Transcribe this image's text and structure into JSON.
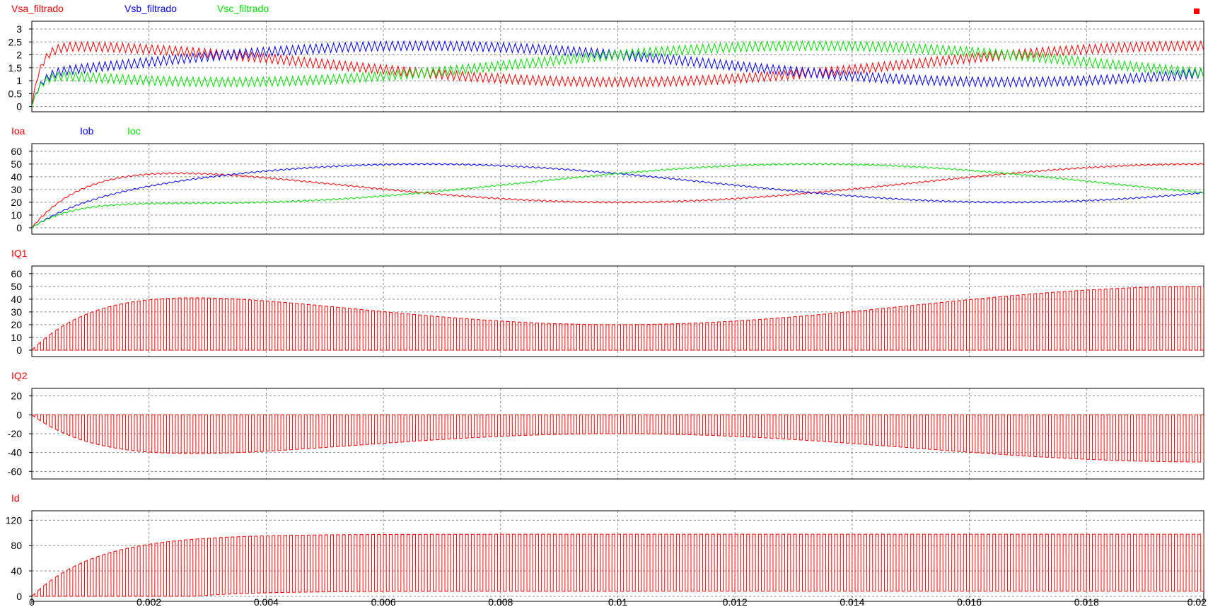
{
  "colors": {
    "red": "#ff0000",
    "blue": "#0000ff",
    "green": "#00e000",
    "grid": "#8a8a8a",
    "axis": "#000000",
    "marker": "#ff0000"
  },
  "chart_data": [
    {
      "type": "line",
      "xlim": [
        0,
        0.02
      ],
      "ylim": [
        -0.2,
        3.3
      ],
      "yticks": [
        0,
        0.5,
        1,
        1.5,
        2,
        2.5,
        3
      ],
      "ytick_labels": [
        "0",
        "0.5",
        "1",
        "1.5",
        "2",
        "2.5",
        "3"
      ],
      "grid": true,
      "legend_position": "top-left",
      "series": [
        {
          "name": "Vsa_filtrado",
          "color": "red",
          "form": "vripple",
          "phase_deg": 0,
          "offset": 1.65,
          "amplitude": 0.7,
          "ripple": 0.18
        },
        {
          "name": "Vsb_filtrado",
          "color": "blue",
          "form": "vripple",
          "phase_deg": -120,
          "offset": 1.65,
          "amplitude": 0.7,
          "ripple": 0.18
        },
        {
          "name": "Vsc_filtrado",
          "color": "green",
          "form": "vripple",
          "phase_deg": 120,
          "offset": 1.65,
          "amplitude": 0.7,
          "ripple": 0.18
        }
      ]
    },
    {
      "type": "line",
      "xlim": [
        0,
        0.02
      ],
      "ylim": [
        -5,
        66
      ],
      "yticks": [
        0,
        10,
        20,
        30,
        40,
        50,
        60
      ],
      "ytick_labels": [
        "0",
        "10",
        "20",
        "30",
        "40",
        "50",
        "60"
      ],
      "grid": true,
      "legend_position": "top-left",
      "series": [
        {
          "name": "Ioa",
          "color": "red",
          "form": "current",
          "phase_deg": 0,
          "offset": 35,
          "amplitude": 15,
          "ripple": 0.6
        },
        {
          "name": "Iob",
          "color": "blue",
          "form": "current",
          "phase_deg": -120,
          "offset": 35,
          "amplitude": 15,
          "ripple": 0.6
        },
        {
          "name": "Ioc",
          "color": "green",
          "form": "current",
          "phase_deg": 120,
          "offset": 35,
          "amplitude": 15,
          "ripple": 0.6
        }
      ]
    },
    {
      "type": "line",
      "xlim": [
        0,
        0.02
      ],
      "ylim": [
        -5,
        66
      ],
      "yticks": [
        0,
        10,
        20,
        30,
        40,
        50,
        60
      ],
      "ytick_labels": [
        "0",
        "10",
        "20",
        "30",
        "40",
        "50",
        "60"
      ],
      "grid": true,
      "legend_position": "top-left",
      "series": [
        {
          "name": "IQ1",
          "color": "red",
          "form": "pulse",
          "sign": 1,
          "phase_deg": 0,
          "offset": 35,
          "amplitude": 15
        }
      ]
    },
    {
      "type": "line",
      "xlim": [
        0,
        0.02
      ],
      "ylim": [
        -68,
        28
      ],
      "yticks": [
        -60,
        -40,
        -20,
        0,
        20
      ],
      "ytick_labels": [
        "-60",
        "-40",
        "-20",
        "0",
        "20"
      ],
      "grid": true,
      "legend_position": "top-left",
      "series": [
        {
          "name": "IQ2",
          "color": "red",
          "form": "pulse",
          "sign": -1,
          "phase_deg": 0,
          "offset": 35,
          "amplitude": 15
        }
      ]
    },
    {
      "type": "line",
      "xlim": [
        0,
        0.02
      ],
      "ylim": [
        -8,
        135
      ],
      "yticks": [
        0,
        40,
        80,
        120
      ],
      "ytick_labels": [
        "0",
        "40",
        "80",
        "120"
      ],
      "grid": true,
      "legend_position": "top-left",
      "series": [
        {
          "name": "Id",
          "color": "red",
          "form": "dc_pulse",
          "offset": 98,
          "ripple": 10
        }
      ]
    }
  ],
  "x_axis": {
    "ticks": [
      0,
      0.002,
      0.004,
      0.006,
      0.008,
      0.01,
      0.012,
      0.014,
      0.016,
      0.018,
      0.02
    ],
    "tick_labels": [
      "0",
      "0.002",
      "0.004",
      "0.006",
      "0.008",
      "0.01",
      "0.012",
      "0.014",
      "0.016",
      "0.018",
      "0.02"
    ]
  },
  "switching_frequency_hz": 10000
}
